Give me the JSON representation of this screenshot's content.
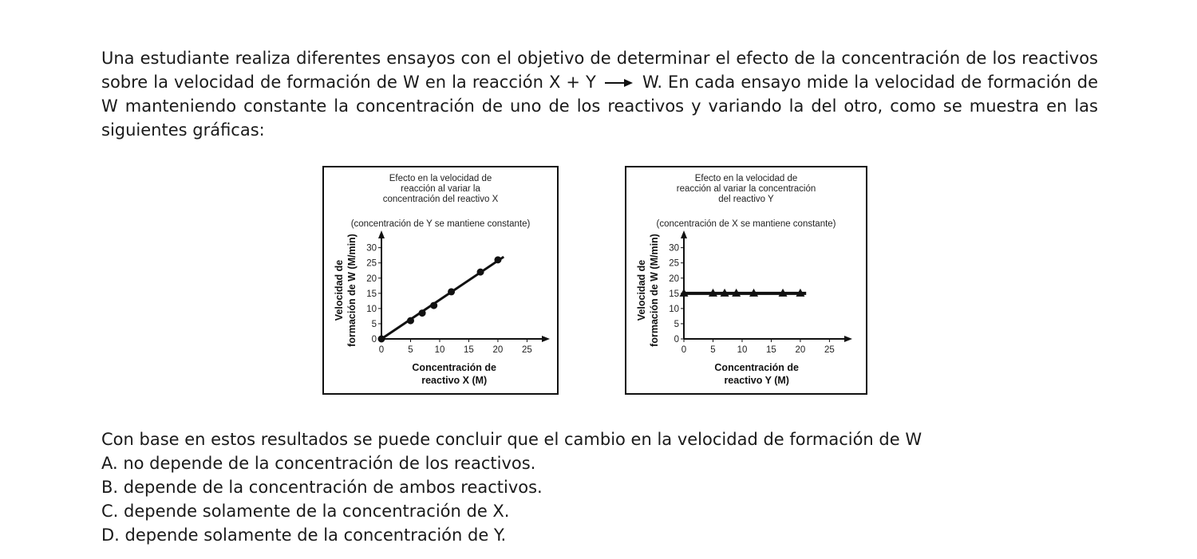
{
  "intro": {
    "part1": "Una estudiante realiza diferentes ensayos con el objetivo de determinar el efecto de la concentración de los reactivos sobre la velocidad de formación de W en la reacción X + Y",
    "part2": "W. En cada ensayo mide la velocidad de formación de W manteniendo constante la concentración de uno de los reactivos y variando la del otro, como se muestra en las siguientes gráficas:"
  },
  "question": {
    "stem": "Con base en estos resultados se puede concluir que el cambio en la velocidad de formación de W",
    "options": [
      "A. no depende de la concentración de los reactivos.",
      "B. depende de la concentración de ambos reactivos.",
      "C. depende solamente de la concentración de X.",
      "D. depende solamente de la concentración de Y."
    ]
  },
  "chart_data": [
    {
      "type": "line",
      "marker": "circle",
      "title": [
        "Efecto en la velocidad de",
        "reacción al variar la",
        "concentración del reactivo X"
      ],
      "subtitle": "(concentración de Y se mantiene constante)",
      "ylabel": [
        "Velocidad de",
        "formación de W (M/min)"
      ],
      "xlabel": [
        "Concentración de",
        "reactivo X (M)"
      ],
      "xticks": [
        0,
        5,
        10,
        15,
        20,
        25
      ],
      "yticks": [
        0,
        5,
        10,
        15,
        20,
        25,
        30
      ],
      "xlim": [
        0,
        27
      ],
      "ylim": [
        0,
        32
      ],
      "x": [
        0,
        5,
        7,
        9,
        12,
        17,
        20
      ],
      "y": [
        0,
        6,
        8.5,
        11,
        15.5,
        22,
        26
      ],
      "line": {
        "x": [
          0,
          21
        ],
        "y": [
          0,
          27
        ]
      }
    },
    {
      "type": "line",
      "marker": "triangle",
      "title": [
        "Efecto en la velocidad de",
        "reacción al variar la concentración",
        "del reactivo Y"
      ],
      "subtitle": "(concentración de X se mantiene constante)",
      "ylabel": [
        "Velocidad de",
        "formación de W (M/min)"
      ],
      "xlabel": [
        "Concentración de",
        "reactivo Y (M)"
      ],
      "xticks": [
        0,
        5,
        10,
        15,
        20,
        25
      ],
      "yticks": [
        0,
        5,
        10,
        15,
        20,
        25,
        30
      ],
      "xlim": [
        0,
        27
      ],
      "ylim": [
        0,
        32
      ],
      "x": [
        0,
        5,
        7,
        9,
        12,
        17,
        20
      ],
      "y": [
        15,
        15,
        15,
        15,
        15,
        15,
        15
      ],
      "line": {
        "x": [
          0,
          21
        ],
        "y": [
          15,
          15
        ]
      }
    }
  ]
}
